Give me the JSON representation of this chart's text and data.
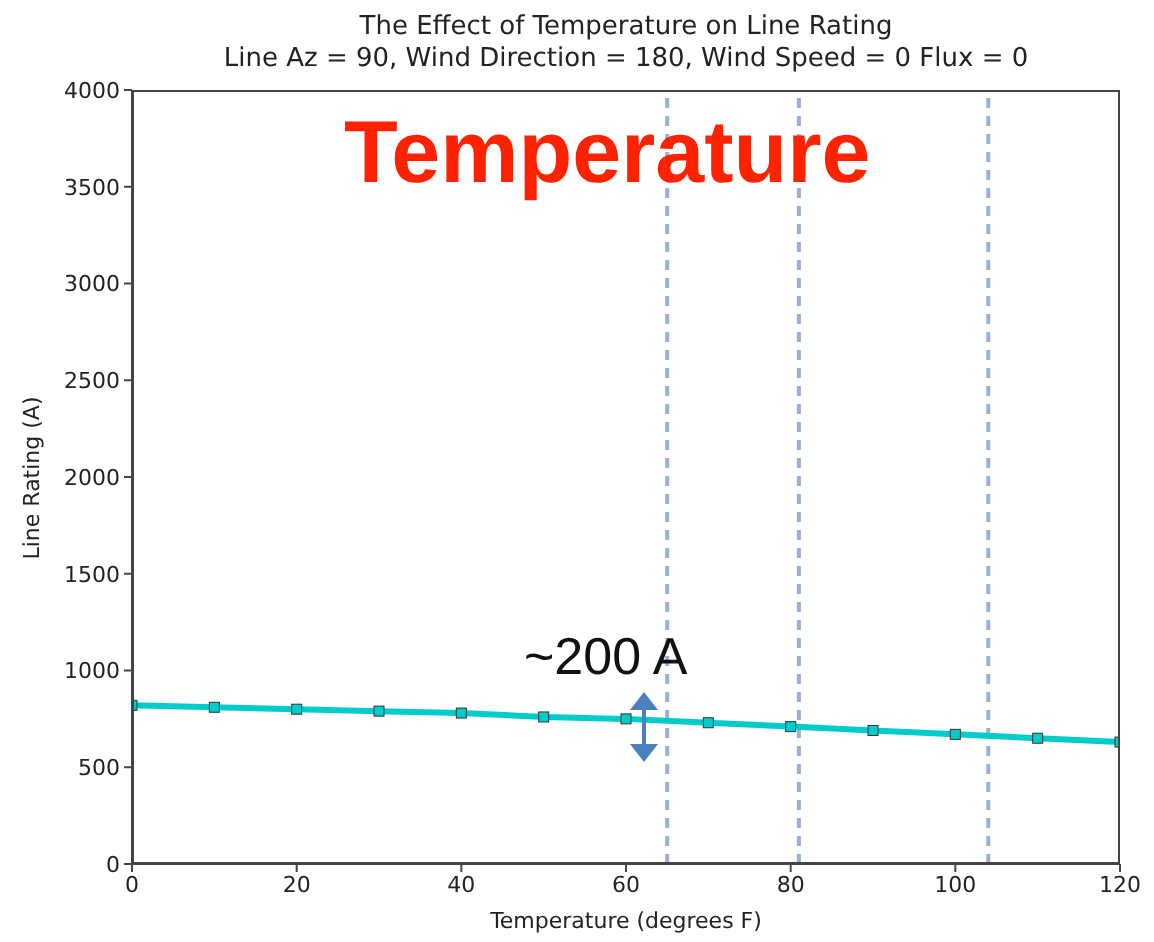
{
  "chart_data": {
    "type": "line",
    "title": "The Effect of Temperature on Line Rating",
    "subtitle": "Line Az = 90, Wind Direction = 180, Wind Speed = 0 Flux = 0",
    "xlabel": "Temperature (degrees F)",
    "ylabel": "Line Rating (A)",
    "annotations": [
      "Temperature",
      "~200 A"
    ],
    "x": [
      0,
      10,
      20,
      30,
      40,
      50,
      60,
      70,
      80,
      90,
      100,
      110,
      120
    ],
    "series": [
      {
        "color": "#00cccc",
        "values": [
          820,
          810,
          800,
          790,
          780,
          760,
          750,
          730,
          710,
          690,
          670,
          650,
          630
        ]
      }
    ],
    "xlim": [
      0,
      120
    ],
    "xticks": [
      0,
      20,
      40,
      60,
      80,
      100,
      120
    ],
    "ylim": [
      0,
      4000
    ],
    "yticks": [
      0,
      500,
      1000,
      1500,
      2000,
      2500,
      3000,
      3500,
      4000
    ],
    "ref_lines": [
      {
        "axis": "x",
        "value": 65,
        "color": "#9ab0dc",
        "line_style": "dashed"
      },
      {
        "axis": "x",
        "value": 81,
        "color": "#9ab0dc",
        "line_style": "dashed"
      },
      {
        "axis": "x",
        "value": 104,
        "color": "#9ab0dc",
        "line_style": "dashed"
      }
    ],
    "marker": "square"
  }
}
